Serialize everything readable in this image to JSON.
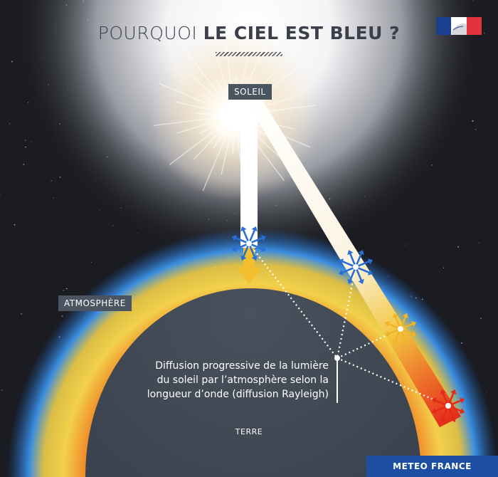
{
  "title": {
    "light": "POURQUOI",
    "bold": "LE CIEL EST BLEU ?"
  },
  "labels": {
    "sun": "SOLEIL",
    "atmosphere": "ATMOSPHÈRE",
    "earth": "TERRE",
    "diffusion": [
      "Diffusion progressive de la lumière",
      "du soleil par l’atmosphère selon la",
      "longueur d’onde (diffusion Rayleigh)"
    ]
  },
  "branding": {
    "footer": "METEO FRANCE"
  },
  "icons": [
    "french-republic-flag-icon",
    "sun-glow-icon",
    "blue-scatter-star-icon",
    "yellow-scatter-star-icon",
    "red-scatter-star-icon",
    "down-arrow-icon"
  ],
  "colors": {
    "background": "#1a1c22",
    "earth": "#414a55",
    "blue": "#2a6fd6",
    "yellow": "#f0c020",
    "red": "#e03520",
    "tag": "#4b5461",
    "footer": "#1c4fa3",
    "title": "#3a3f4a"
  }
}
